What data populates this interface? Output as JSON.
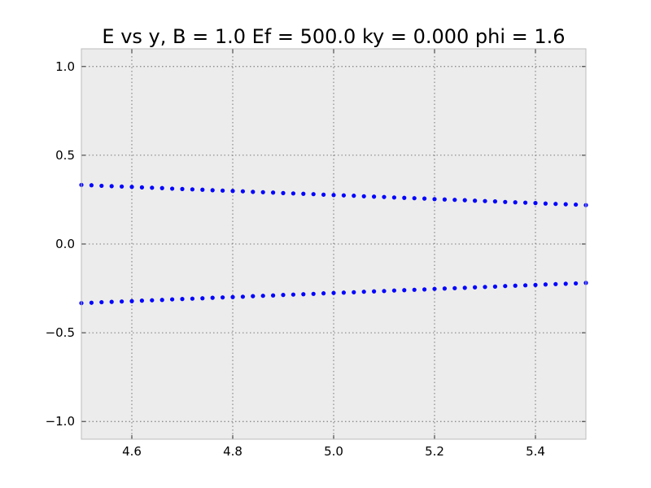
{
  "chart_data": {
    "type": "scatter",
    "title": "E vs y, B = 1.0 Ef = 500.0 ky = 0.000 phi = 1.6",
    "xlabel": "",
    "ylabel": "",
    "xlim": [
      4.5,
      5.5
    ],
    "ylim": [
      -1.1,
      1.1
    ],
    "x_ticks": [
      4.6,
      4.8,
      5.0,
      5.2,
      5.4
    ],
    "x_tick_labels": [
      "4.6",
      "4.8",
      "5.0",
      "5.2",
      "5.4"
    ],
    "y_ticks": [
      1.0,
      0.5,
      0.0,
      -0.5,
      -1.0
    ],
    "y_tick_labels": [
      "1.0",
      "0.5",
      "0.0",
      "−0.5",
      "−1.0"
    ],
    "grid": true,
    "background_color": "#ececec",
    "marker_color": "#0000ff",
    "series": [
      {
        "x": [
          4.5,
          4.52,
          4.54,
          4.56,
          4.58,
          4.6,
          4.62,
          4.64,
          4.66,
          4.68,
          4.7,
          4.72,
          4.74,
          4.76,
          4.78,
          4.8,
          4.82,
          4.84,
          4.86,
          4.88,
          4.9,
          4.92,
          4.94,
          4.96,
          4.98,
          5.0,
          5.02,
          5.04,
          5.06,
          5.08,
          5.1,
          5.12,
          5.14,
          5.16,
          5.18,
          5.2,
          5.22,
          5.24,
          5.26,
          5.28,
          5.3,
          5.32,
          5.34,
          5.36,
          5.38,
          5.4,
          5.42,
          5.44,
          5.46,
          5.48,
          5.5
        ],
        "y": [
          0.333,
          0.331,
          0.328,
          0.326,
          0.324,
          0.322,
          0.319,
          0.317,
          0.315,
          0.312,
          0.31,
          0.308,
          0.306,
          0.303,
          0.301,
          0.299,
          0.297,
          0.294,
          0.292,
          0.29,
          0.287,
          0.285,
          0.283,
          0.281,
          0.278,
          0.276,
          0.274,
          0.272,
          0.269,
          0.267,
          0.265,
          0.262,
          0.26,
          0.258,
          0.256,
          0.253,
          0.251,
          0.249,
          0.247,
          0.244,
          0.242,
          0.24,
          0.237,
          0.235,
          0.233,
          0.231,
          0.228,
          0.226,
          0.224,
          0.222,
          0.219
        ]
      },
      {
        "x": [
          4.5,
          4.52,
          4.54,
          4.56,
          4.58,
          4.6,
          4.62,
          4.64,
          4.66,
          4.68,
          4.7,
          4.72,
          4.74,
          4.76,
          4.78,
          4.8,
          4.82,
          4.84,
          4.86,
          4.88,
          4.9,
          4.92,
          4.94,
          4.96,
          4.98,
          5.0,
          5.02,
          5.04,
          5.06,
          5.08,
          5.1,
          5.12,
          5.14,
          5.16,
          5.18,
          5.2,
          5.22,
          5.24,
          5.26,
          5.28,
          5.3,
          5.32,
          5.34,
          5.36,
          5.38,
          5.4,
          5.42,
          5.44,
          5.46,
          5.48,
          5.5
        ],
        "y": [
          -0.333,
          -0.331,
          -0.328,
          -0.326,
          -0.324,
          -0.322,
          -0.319,
          -0.317,
          -0.315,
          -0.312,
          -0.31,
          -0.308,
          -0.306,
          -0.303,
          -0.301,
          -0.299,
          -0.297,
          -0.294,
          -0.292,
          -0.29,
          -0.287,
          -0.285,
          -0.283,
          -0.281,
          -0.278,
          -0.276,
          -0.274,
          -0.272,
          -0.269,
          -0.267,
          -0.265,
          -0.262,
          -0.26,
          -0.258,
          -0.256,
          -0.253,
          -0.251,
          -0.249,
          -0.247,
          -0.244,
          -0.242,
          -0.24,
          -0.237,
          -0.235,
          -0.233,
          -0.231,
          -0.228,
          -0.226,
          -0.224,
          -0.222,
          -0.219
        ]
      }
    ]
  }
}
